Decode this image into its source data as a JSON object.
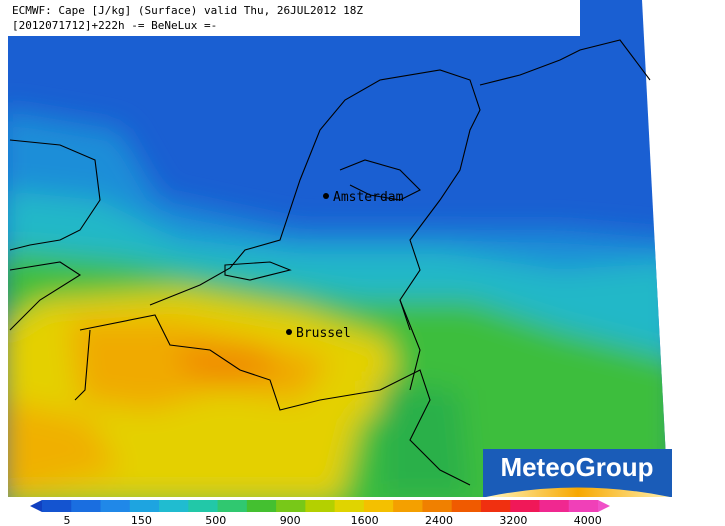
{
  "header": {
    "line1": "ECMWF: Cape [J/kg] (Surface) valid Thu, 26JUL2012 18Z",
    "line2": "[2012071712]+222h -= BeNeLux =-"
  },
  "cities": [
    {
      "label": "Amsterdam"
    },
    {
      "label": "Brussel"
    }
  ],
  "logo": "MeteoGroup",
  "legend": {
    "labels": [
      5,
      150,
      500,
      900,
      1600,
      2400,
      3200,
      4000
    ]
  }
}
